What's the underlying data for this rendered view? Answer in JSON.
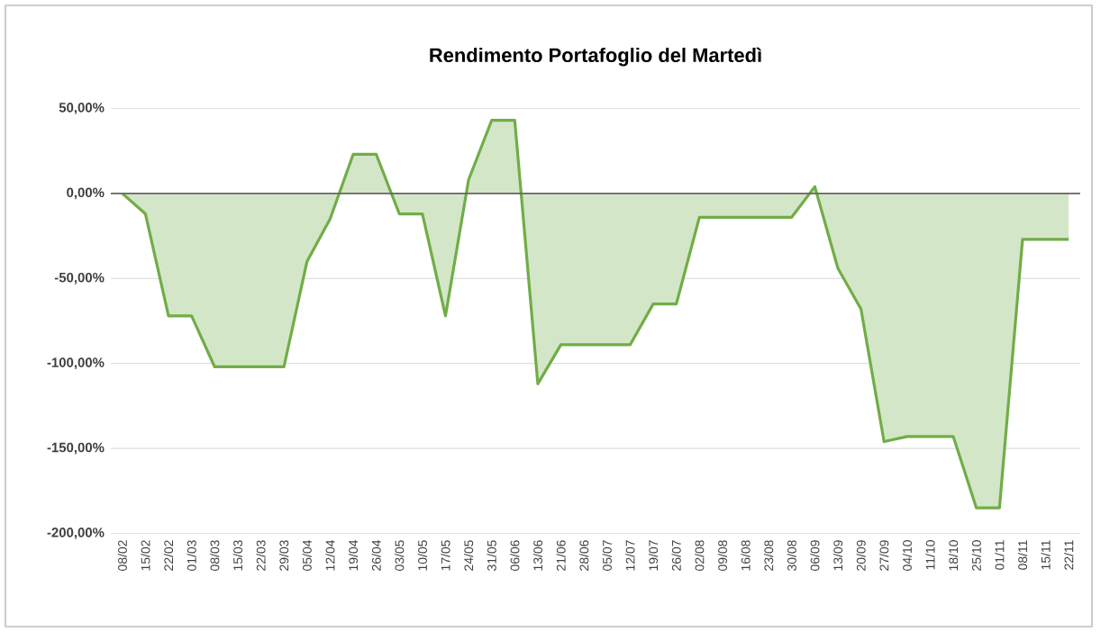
{
  "chart_data": {
    "type": "area",
    "title": "Rendimento Portafoglio del Martedì",
    "categories": [
      "08/02",
      "15/02",
      "22/02",
      "01/03",
      "08/03",
      "15/03",
      "22/03",
      "29/03",
      "05/04",
      "12/04",
      "19/04",
      "26/04",
      "03/05",
      "10/05",
      "17/05",
      "24/05",
      "31/05",
      "06/06",
      "13/06",
      "21/06",
      "28/06",
      "05/07",
      "12/07",
      "19/07",
      "26/07",
      "02/08",
      "09/08",
      "16/08",
      "23/08",
      "30/08",
      "06/09",
      "13/09",
      "20/09",
      "27/09",
      "04/10",
      "11/10",
      "18/10",
      "25/10",
      "01/11",
      "08/11",
      "15/11",
      "22/11"
    ],
    "values": [
      0,
      -12,
      -72,
      -72,
      -102,
      -102,
      -102,
      -102,
      -40,
      -15,
      23,
      23,
      -12,
      -12,
      -72,
      8,
      43,
      43,
      -112,
      -89,
      -89,
      -89,
      -89,
      -65,
      -65,
      -14,
      -14,
      -14,
      -14,
      -14,
      4,
      -44,
      -68,
      -146,
      -143,
      -143,
      -143,
      -185,
      -185,
      -27,
      -27,
      -27
    ],
    "color": "#70ad47",
    "ylim": [
      -200,
      50
    ],
    "yticks": [
      {
        "value": -200,
        "label": "-200,00%"
      },
      {
        "value": -150,
        "label": "-150,00%"
      },
      {
        "value": -100,
        "label": "-100,00%"
      },
      {
        "value": -50,
        "label": "-50,00%"
      },
      {
        "value": 0,
        "label": "0,00%"
      },
      {
        "value": 50,
        "label": "50,00%"
      }
    ],
    "grid": "y"
  }
}
